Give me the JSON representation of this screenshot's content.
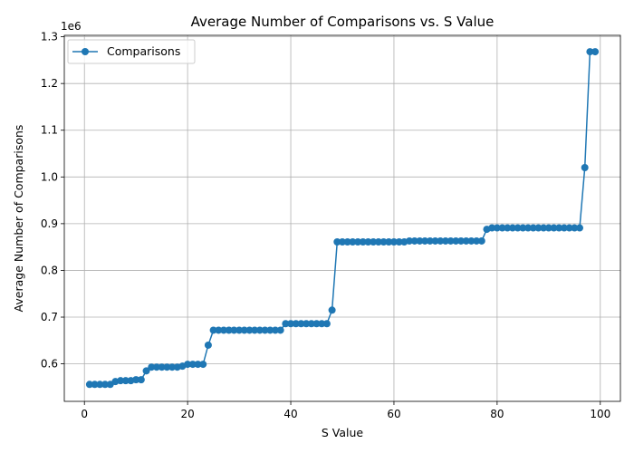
{
  "chart_data": {
    "type": "line",
    "title": "Average Number of Comparisons vs. S Value",
    "xlabel": "S Value",
    "ylabel": "Average Number of Comparisons",
    "offset_label": "1e6",
    "xlim": [
      -3.9,
      103.9
    ],
    "ylim": [
      0.5197,
      1.3031
    ],
    "xticks": [
      0,
      20,
      40,
      60,
      80,
      100
    ],
    "yticks": [
      0.6,
      0.7,
      0.8,
      0.9,
      1.0,
      1.1,
      1.2,
      1.3
    ],
    "ytick_labels": [
      "0.6",
      "0.7",
      "0.8",
      "0.9",
      "1.0",
      "1.1",
      "1.2",
      "1.3"
    ],
    "grid": true,
    "legend": "upper-left",
    "series": [
      {
        "name": "Comparisons",
        "color": "#1f77b4",
        "marker": "circle",
        "x": [
          1,
          2,
          3,
          4,
          5,
          6,
          7,
          8,
          9,
          10,
          11,
          12,
          13,
          14,
          15,
          16,
          17,
          18,
          19,
          20,
          21,
          22,
          23,
          24,
          25,
          26,
          27,
          28,
          29,
          30,
          31,
          32,
          33,
          34,
          35,
          36,
          37,
          38,
          39,
          40,
          41,
          42,
          43,
          44,
          45,
          46,
          47,
          48,
          49,
          50,
          51,
          52,
          53,
          54,
          55,
          56,
          57,
          58,
          59,
          60,
          61,
          62,
          63,
          64,
          65,
          66,
          67,
          68,
          69,
          70,
          71,
          72,
          73,
          74,
          75,
          76,
          77,
          78,
          79,
          80,
          81,
          82,
          83,
          84,
          85,
          86,
          87,
          88,
          89,
          90,
          91,
          92,
          93,
          94,
          95,
          96,
          97,
          98,
          99
        ],
        "y": [
          0.556,
          0.556,
          0.556,
          0.556,
          0.556,
          0.562,
          0.564,
          0.564,
          0.564,
          0.566,
          0.566,
          0.585,
          0.593,
          0.593,
          0.593,
          0.593,
          0.593,
          0.593,
          0.595,
          0.599,
          0.599,
          0.599,
          0.599,
          0.64,
          0.672,
          0.672,
          0.672,
          0.672,
          0.672,
          0.672,
          0.672,
          0.672,
          0.672,
          0.672,
          0.672,
          0.672,
          0.672,
          0.672,
          0.686,
          0.686,
          0.686,
          0.686,
          0.686,
          0.686,
          0.686,
          0.686,
          0.686,
          0.715,
          0.861,
          0.861,
          0.861,
          0.861,
          0.861,
          0.861,
          0.861,
          0.861,
          0.861,
          0.861,
          0.861,
          0.861,
          0.861,
          0.861,
          0.863,
          0.863,
          0.863,
          0.863,
          0.863,
          0.863,
          0.863,
          0.863,
          0.863,
          0.863,
          0.863,
          0.863,
          0.863,
          0.863,
          0.863,
          0.888,
          0.891,
          0.891,
          0.891,
          0.891,
          0.891,
          0.891,
          0.891,
          0.891,
          0.891,
          0.891,
          0.891,
          0.891,
          0.891,
          0.891,
          0.891,
          0.891,
          0.891,
          0.891,
          1.02,
          1.268,
          1.268
        ]
      }
    ]
  }
}
